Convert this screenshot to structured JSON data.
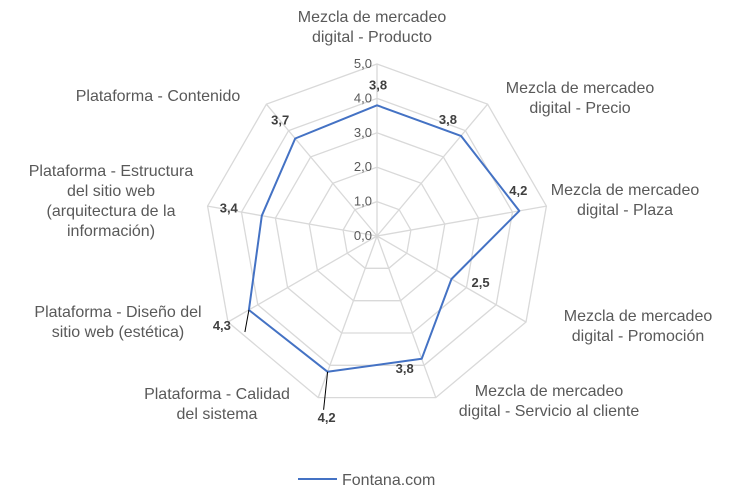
{
  "chart_data": {
    "type": "radar",
    "title": "",
    "categories": [
      [
        "Mezcla de mercadeo",
        "digital - Producto"
      ],
      [
        "Mezcla de mercadeo",
        "digital - Precio"
      ],
      [
        "Mezcla de mercadeo",
        "digital - Plaza"
      ],
      [
        "Mezcla de mercadeo",
        "digital - Promoción"
      ],
      [
        "Mezcla de mercadeo",
        "digital - Servicio al cliente"
      ],
      [
        "Plataforma - Calidad",
        "del sistema"
      ],
      [
        "Plataforma - Diseño del",
        "sitio web (estética)"
      ],
      [
        "Plataforma - Estructura",
        "del sitio web",
        "(arquitectura de la",
        "información)"
      ],
      [
        "Plataforma - Contenido"
      ]
    ],
    "series": [
      {
        "name": "Fontana.com",
        "values": [
          3.8,
          3.8,
          4.2,
          2.5,
          3.8,
          4.2,
          4.3,
          3.4,
          3.7
        ],
        "data_labels": [
          "3,8",
          "3,8",
          "4,2",
          "2,5",
          "3,8",
          "4,2",
          "4,3",
          "3,4",
          "3,7"
        ]
      }
    ],
    "ticks": [
      0,
      1,
      2,
      3,
      4,
      5
    ],
    "tick_labels": [
      "0,0",
      "1,0",
      "2,0",
      "3,0",
      "4,0",
      "5,0"
    ],
    "rlim": [
      0,
      5
    ],
    "grid": true,
    "legend": "bottom",
    "colors": {
      "series": "#4472c4",
      "grid": "#d9d9d9",
      "text": "#595959"
    }
  }
}
